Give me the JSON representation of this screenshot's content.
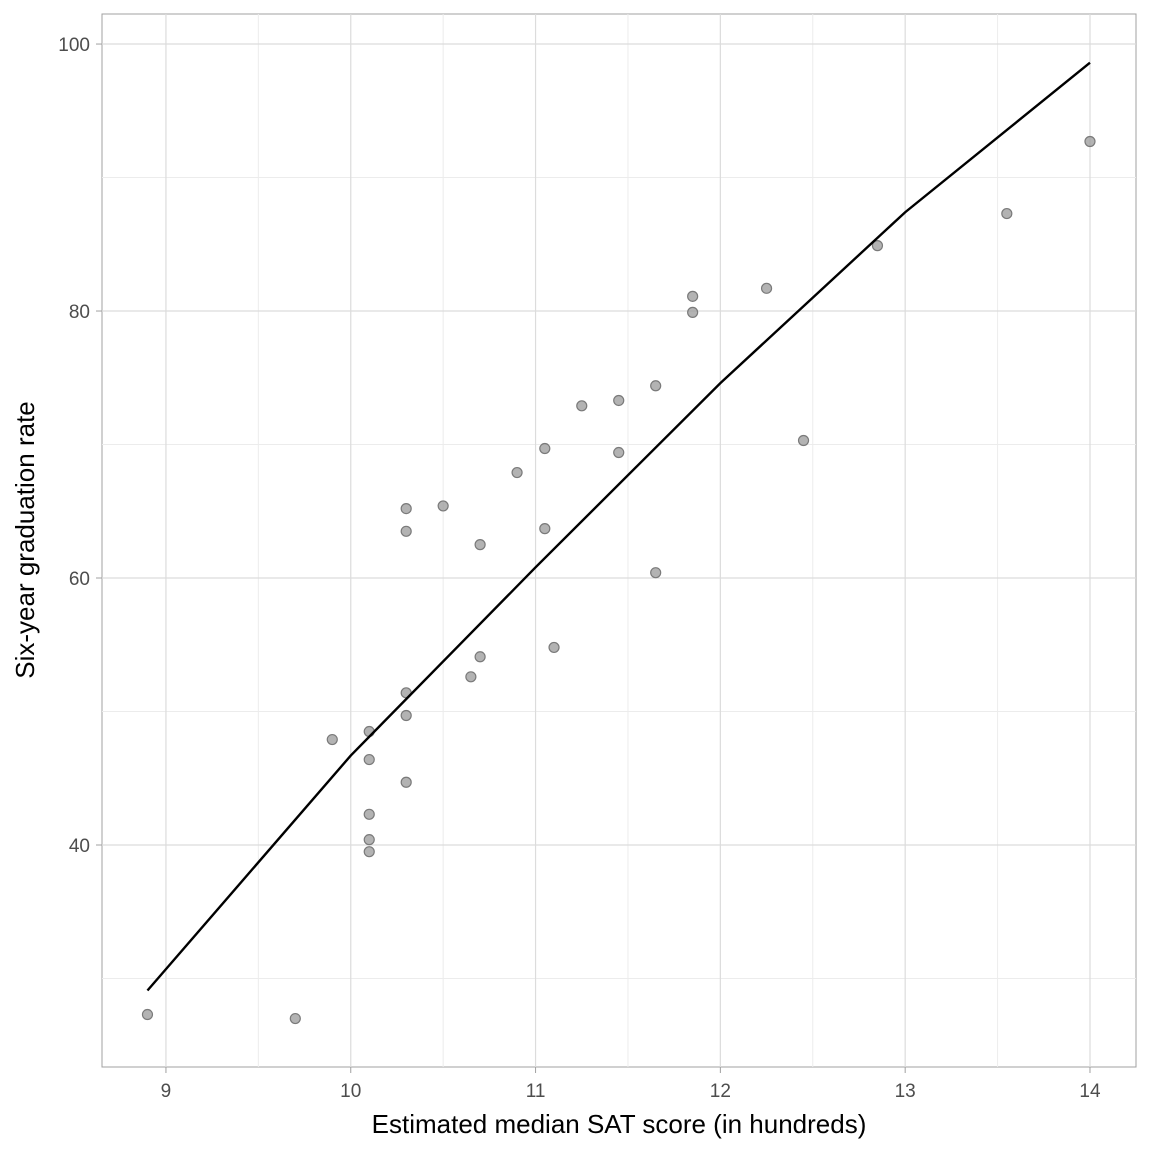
{
  "chart_data": {
    "type": "scatter",
    "title": "",
    "xlabel": "Estimated median SAT score (in hundreds)",
    "ylabel": "Six-year graduation rate",
    "xlim": [
      8.654,
      14.249
    ],
    "ylim": [
      23.37,
      102.25
    ],
    "x_ticks": [
      9,
      10,
      11,
      12,
      13,
      14
    ],
    "y_ticks": [
      40,
      60,
      80,
      100
    ],
    "grid": true,
    "point_color": "#999999",
    "line_color": "#000000",
    "points": [
      [
        8.9,
        27.3
      ],
      [
        9.7,
        27.0
      ],
      [
        9.9,
        47.9
      ],
      [
        10.1,
        48.5
      ],
      [
        10.1,
        46.4
      ],
      [
        10.1,
        42.3
      ],
      [
        10.1,
        40.4
      ],
      [
        10.1,
        39.5
      ],
      [
        10.3,
        65.2
      ],
      [
        10.3,
        63.5
      ],
      [
        10.3,
        51.4
      ],
      [
        10.3,
        49.7
      ],
      [
        10.3,
        44.7
      ],
      [
        10.5,
        65.4
      ],
      [
        10.65,
        52.6
      ],
      [
        10.7,
        62.5
      ],
      [
        10.7,
        54.1
      ],
      [
        10.9,
        67.9
      ],
      [
        11.05,
        69.7
      ],
      [
        11.05,
        63.7
      ],
      [
        11.1,
        54.8
      ],
      [
        11.25,
        72.9
      ],
      [
        11.45,
        73.3
      ],
      [
        11.45,
        69.4
      ],
      [
        11.65,
        74.4
      ],
      [
        11.65,
        60.4
      ],
      [
        11.85,
        81.1
      ],
      [
        11.85,
        79.9
      ],
      [
        12.25,
        81.7
      ],
      [
        12.45,
        70.3
      ],
      [
        12.85,
        84.9
      ],
      [
        13.55,
        87.3
      ],
      [
        14.0,
        92.7
      ]
    ],
    "fit_line": [
      [
        8.9,
        29.1
      ],
      [
        10,
        46.7
      ],
      [
        11,
        60.8
      ],
      [
        12,
        74.6
      ],
      [
        13,
        87.4
      ],
      [
        14,
        98.6
      ]
    ]
  }
}
